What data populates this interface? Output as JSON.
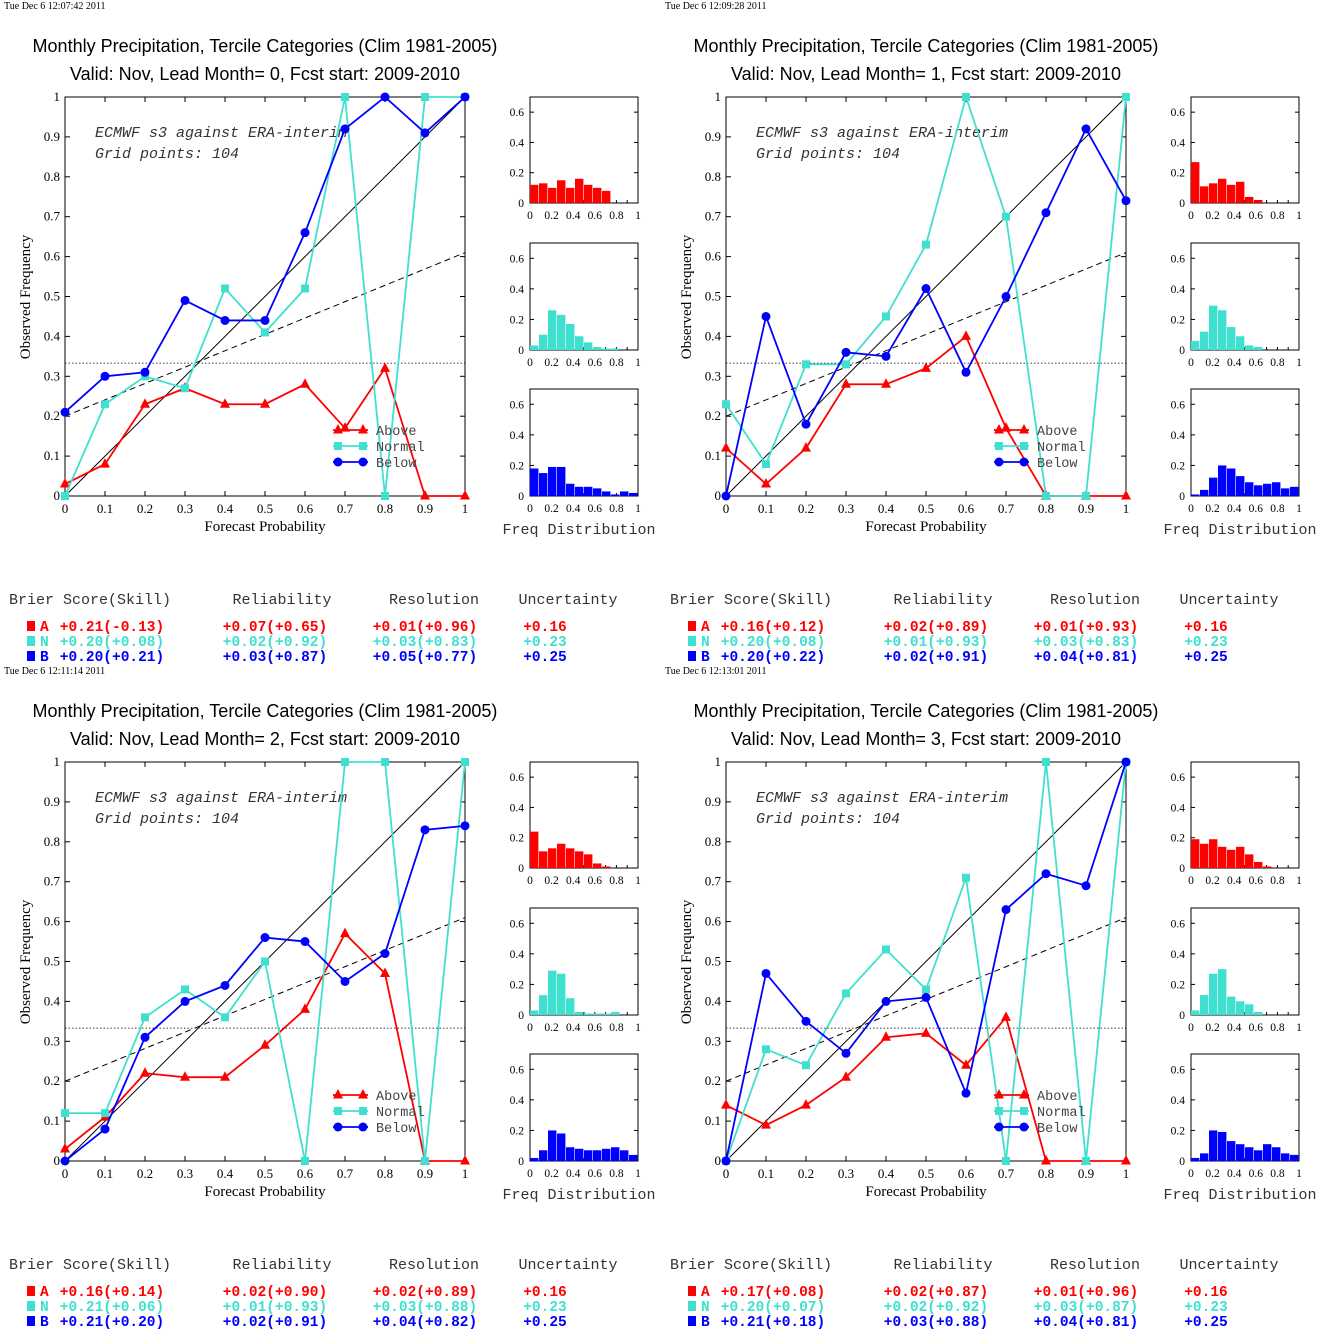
{
  "labels": {
    "xlabel": "Forecast Probability",
    "ylabel": "Observed Frequency",
    "freq_label": "Freq Distribution",
    "legend": [
      "Above",
      "Normal",
      "Below"
    ],
    "score_headers": [
      "Brier Score(Skill)",
      "Reliability",
      "Resolution",
      "Uncertainty"
    ],
    "row_letters": [
      "A",
      "N",
      "B"
    ]
  },
  "colors": {
    "above": "#ff0000",
    "normal": "#40e0d0",
    "below": "#0000ff"
  },
  "chart_data": [
    {
      "type": "line",
      "timestamp": "Tue Dec  6 12:07:42 2011",
      "title": "Monthly Precipitation, Tercile Categories (Clim 1981-2005)",
      "subtitle": "Valid: Nov, Lead Month= 0, Fcst start: 2009-2010",
      "annotation": [
        "ECMWF s3 against ERA-interim",
        "Grid points:  104"
      ],
      "xlim": [
        0,
        1
      ],
      "ylim": [
        0,
        1
      ],
      "x": [
        0,
        0.1,
        0.2,
        0.3,
        0.4,
        0.5,
        0.6,
        0.7,
        0.8,
        0.9,
        1
      ],
      "series": [
        {
          "name": "Above",
          "values": [
            0.03,
            0.08,
            0.23,
            0.27,
            0.23,
            0.23,
            0.28,
            0.17,
            0.32,
            0,
            0
          ]
        },
        {
          "name": "Normal",
          "values": [
            0,
            0.23,
            0.3,
            0.27,
            0.52,
            0.41,
            0.52,
            1.0,
            0,
            1.0,
            1.0
          ]
        },
        {
          "name": "Below",
          "values": [
            0.21,
            0.3,
            0.31,
            0.49,
            0.44,
            0.44,
            0.66,
            0.92,
            1.0,
            0.91,
            1.0
          ]
        }
      ],
      "hist": {
        "Above": [
          0.12,
          0.13,
          0.1,
          0.15,
          0.1,
          0.16,
          0.12,
          0.1,
          0.08
        ],
        "Normal": [
          0.03,
          0.1,
          0.26,
          0.23,
          0.17,
          0.09,
          0.05,
          0.02,
          0.01,
          0.01
        ],
        "Below": [
          0.18,
          0.15,
          0.19,
          0.19,
          0.08,
          0.06,
          0.06,
          0.05,
          0.03,
          0.01,
          0.03,
          0.02
        ]
      },
      "scores": [
        [
          "+0.21(-0.13)",
          "+0.07(+0.65)",
          "+0.01(+0.96)",
          "+0.16"
        ],
        [
          "+0.20(+0.08)",
          "+0.02(+0.92)",
          "+0.03(+0.83)",
          "+0.23"
        ],
        [
          "+0.20(+0.21)",
          "+0.03(+0.87)",
          "+0.05(+0.77)",
          "+0.25"
        ]
      ]
    },
    {
      "type": "line",
      "timestamp": "Tue Dec  6 12:09:28 2011",
      "title": "Monthly Precipitation, Tercile Categories (Clim 1981-2005)",
      "subtitle": "Valid: Nov, Lead Month= 1, Fcst start: 2009-2010",
      "annotation": [
        "ECMWF s3 against ERA-interim",
        "Grid points:  104"
      ],
      "xlim": [
        0,
        1
      ],
      "ylim": [
        0,
        1
      ],
      "x": [
        0,
        0.1,
        0.2,
        0.3,
        0.4,
        0.5,
        0.6,
        0.7,
        0.8,
        0.9,
        1
      ],
      "series": [
        {
          "name": "Above",
          "values": [
            0.12,
            0.03,
            0.12,
            0.28,
            0.28,
            0.32,
            0.4,
            0.17,
            0,
            0,
            0
          ]
        },
        {
          "name": "Normal",
          "values": [
            0.23,
            0.08,
            0.33,
            0.33,
            0.45,
            0.63,
            1.0,
            0.7,
            0,
            0,
            1.0
          ]
        },
        {
          "name": "Below",
          "values": [
            0,
            0.45,
            0.18,
            0.36,
            0.35,
            0.52,
            0.31,
            0.5,
            0.71,
            0.92,
            0.74
          ]
        }
      ],
      "hist": {
        "Above": [
          0.27,
          0.11,
          0.13,
          0.16,
          0.12,
          0.14,
          0.04,
          0.02
        ],
        "Normal": [
          0.06,
          0.12,
          0.29,
          0.26,
          0.15,
          0.09,
          0.03,
          0.02
        ],
        "Below": [
          0.01,
          0.04,
          0.12,
          0.2,
          0.18,
          0.13,
          0.09,
          0.07,
          0.08,
          0.09,
          0.05,
          0.06
        ]
      },
      "scores": [
        [
          "+0.16(+0.12)",
          "+0.02(+0.89)",
          "+0.01(+0.93)",
          "+0.16"
        ],
        [
          "+0.20(+0.08)",
          "+0.01(+0.93)",
          "+0.03(+0.83)",
          "+0.23"
        ],
        [
          "+0.20(+0.22)",
          "+0.02(+0.91)",
          "+0.04(+0.81)",
          "+0.25"
        ]
      ]
    },
    {
      "type": "line",
      "timestamp": "Tue Dec  6 12:11:14 2011",
      "title": "Monthly Precipitation, Tercile Categories (Clim 1981-2005)",
      "subtitle": "Valid: Nov, Lead Month= 2, Fcst start: 2009-2010",
      "annotation": [
        "ECMWF s3 against ERA-interim",
        "Grid points:  104"
      ],
      "xlim": [
        0,
        1
      ],
      "ylim": [
        0,
        1
      ],
      "x": [
        0,
        0.1,
        0.2,
        0.3,
        0.4,
        0.5,
        0.6,
        0.7,
        0.8,
        0.9,
        1
      ],
      "series": [
        {
          "name": "Above",
          "values": [
            0.03,
            0.11,
            0.22,
            0.21,
            0.21,
            0.29,
            0.38,
            0.57,
            0.47,
            0,
            0
          ]
        },
        {
          "name": "Normal",
          "values": [
            0.12,
            0.12,
            0.36,
            0.43,
            0.36,
            0.5,
            0,
            1.0,
            1.0,
            0,
            1.0
          ]
        },
        {
          "name": "Below",
          "values": [
            0,
            0.08,
            0.31,
            0.4,
            0.44,
            0.56,
            0.55,
            0.45,
            0.52,
            0.83,
            0.84
          ]
        }
      ],
      "hist": {
        "Above": [
          0.24,
          0.11,
          0.13,
          0.16,
          0.13,
          0.11,
          0.09,
          0.03,
          0.01
        ],
        "Normal": [
          0.03,
          0.13,
          0.29,
          0.27,
          0.11,
          0.02,
          0.01,
          0.01,
          0.01,
          0.02
        ],
        "Below": [
          0.02,
          0.07,
          0.2,
          0.18,
          0.09,
          0.08,
          0.07,
          0.07,
          0.08,
          0.09,
          0.07,
          0.04
        ]
      },
      "scores": [
        [
          "+0.16(+0.14)",
          "+0.02(+0.90)",
          "+0.02(+0.89)",
          "+0.16"
        ],
        [
          "+0.21(+0.06)",
          "+0.01(+0.93)",
          "+0.03(+0.88)",
          "+0.23"
        ],
        [
          "+0.21(+0.20)",
          "+0.02(+0.91)",
          "+0.04(+0.82)",
          "+0.25"
        ]
      ]
    },
    {
      "type": "line",
      "timestamp": "Tue Dec  6 12:13:01 2011",
      "title": "Monthly Precipitation, Tercile Categories (Clim 1981-2005)",
      "subtitle": "Valid: Nov, Lead Month= 3, Fcst start: 2009-2010",
      "annotation": [
        "ECMWF s3 against ERA-interim",
        "Grid points:  104"
      ],
      "xlim": [
        0,
        1
      ],
      "ylim": [
        0,
        1
      ],
      "x": [
        0,
        0.1,
        0.2,
        0.3,
        0.4,
        0.5,
        0.6,
        0.7,
        0.8,
        0.9,
        1
      ],
      "series": [
        {
          "name": "Above",
          "values": [
            0.14,
            0.09,
            0.14,
            0.21,
            0.31,
            0.32,
            0.24,
            0.36,
            0,
            0,
            0
          ]
        },
        {
          "name": "Normal",
          "values": [
            0,
            0.28,
            0.24,
            0.42,
            0.53,
            0.43,
            0.71,
            0,
            1.0,
            0,
            1.0
          ]
        },
        {
          "name": "Below",
          "values": [
            0,
            0.47,
            0.35,
            0.27,
            0.4,
            0.41,
            0.17,
            0.63,
            0.72,
            0.69,
            1.0
          ]
        }
      ],
      "hist": {
        "Above": [
          0.19,
          0.16,
          0.19,
          0.14,
          0.12,
          0.14,
          0.09,
          0.04,
          0.01
        ],
        "Normal": [
          0.03,
          0.13,
          0.27,
          0.3,
          0.12,
          0.09,
          0.07,
          0.02
        ],
        "Below": [
          0.02,
          0.05,
          0.2,
          0.19,
          0.13,
          0.11,
          0.09,
          0.07,
          0.11,
          0.09,
          0.05,
          0.04
        ]
      },
      "scores": [
        [
          "+0.17(+0.08)",
          "+0.02(+0.87)",
          "+0.01(+0.96)",
          "+0.16"
        ],
        [
          "+0.20(+0.07)",
          "+0.02(+0.92)",
          "+0.03(+0.87)",
          "+0.23"
        ],
        [
          "+0.21(+0.18)",
          "+0.03(+0.88)",
          "+0.04(+0.81)",
          "+0.25"
        ]
      ]
    }
  ]
}
